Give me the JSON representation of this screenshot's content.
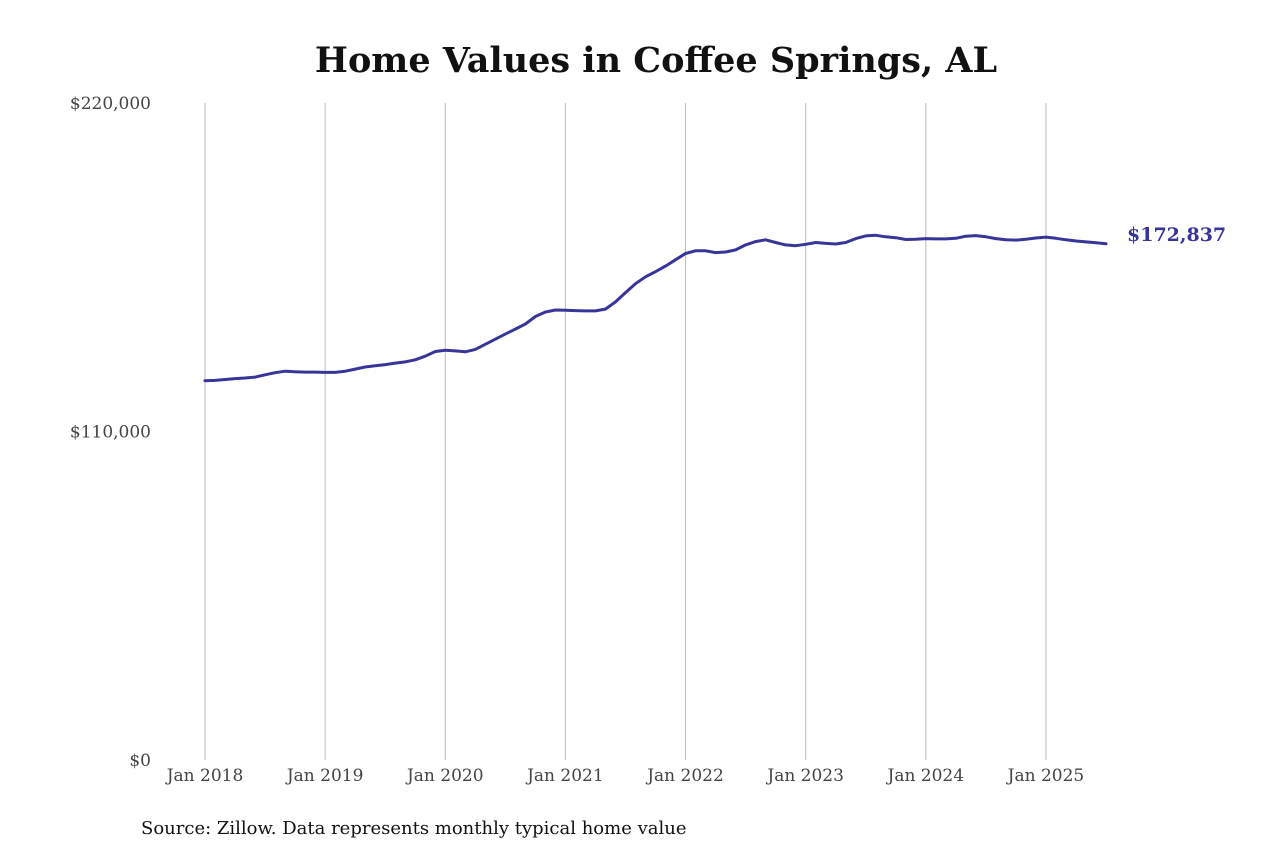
{
  "colors": {
    "line": "#38359a",
    "grid": "#bdbdbd",
    "text": "#444444"
  },
  "chart_data": {
    "type": "line",
    "title": "Home Values in Coffee Springs, AL",
    "xlabel": "",
    "ylabel": "",
    "ylim": [
      0,
      220000
    ],
    "yticks": [
      {
        "value": 0,
        "label": "$0"
      },
      {
        "value": 110000,
        "label": "$110,000"
      },
      {
        "value": 220000,
        "label": "$220,000"
      }
    ],
    "xlim": [
      "2018-01",
      "2025-07"
    ],
    "xticks": [
      {
        "value": "2018-01",
        "label": "Jan 2018"
      },
      {
        "value": "2019-01",
        "label": "Jan 2019"
      },
      {
        "value": "2020-01",
        "label": "Jan 2020"
      },
      {
        "value": "2021-01",
        "label": "Jan 2021"
      },
      {
        "value": "2022-01",
        "label": "Jan 2022"
      },
      {
        "value": "2023-01",
        "label": "Jan 2023"
      },
      {
        "value": "2024-01",
        "label": "Jan 2024"
      },
      {
        "value": "2025-01",
        "label": "Jan 2025"
      }
    ],
    "grid": "vertical",
    "end_label": "$172,837",
    "source": "Source: Zillow. Data represents monthly typical home value",
    "series": [
      {
        "points": [
          [
            "2018-01",
            127000
          ],
          [
            "2018-02",
            127100
          ],
          [
            "2018-03",
            127400
          ],
          [
            "2018-04",
            127700
          ],
          [
            "2018-05",
            127900
          ],
          [
            "2018-06",
            128200
          ],
          [
            "2018-07",
            129000
          ],
          [
            "2018-08",
            129700
          ],
          [
            "2018-09",
            130200
          ],
          [
            "2018-10",
            130000
          ],
          [
            "2018-11",
            129900
          ],
          [
            "2018-12",
            129900
          ],
          [
            "2019-01",
            129800
          ],
          [
            "2019-02",
            129800
          ],
          [
            "2019-03",
            130200
          ],
          [
            "2019-04",
            130900
          ],
          [
            "2019-05",
            131600
          ],
          [
            "2019-06",
            132000
          ],
          [
            "2019-07",
            132400
          ],
          [
            "2019-08",
            132900
          ],
          [
            "2019-09",
            133300
          ],
          [
            "2019-10",
            134000
          ],
          [
            "2019-11",
            135200
          ],
          [
            "2019-12",
            136800
          ],
          [
            "2020-01",
            137200
          ],
          [
            "2020-02",
            137000
          ],
          [
            "2020-03",
            136700
          ],
          [
            "2020-04",
            137500
          ],
          [
            "2020-05",
            139200
          ],
          [
            "2020-06",
            140900
          ],
          [
            "2020-07",
            142600
          ],
          [
            "2020-08",
            144300
          ],
          [
            "2020-09",
            146000
          ],
          [
            "2020-10",
            148500
          ],
          [
            "2020-11",
            150000
          ],
          [
            "2020-12",
            150700
          ],
          [
            "2021-01",
            150600
          ],
          [
            "2021-02",
            150500
          ],
          [
            "2021-03",
            150400
          ],
          [
            "2021-04",
            150400
          ],
          [
            "2021-05",
            151000
          ],
          [
            "2021-06",
            153400
          ],
          [
            "2021-07",
            156500
          ],
          [
            "2021-08",
            159500
          ],
          [
            "2021-09",
            161800
          ],
          [
            "2021-10",
            163500
          ],
          [
            "2021-11",
            165400
          ],
          [
            "2021-12",
            167500
          ],
          [
            "2022-01",
            169600
          ],
          [
            "2022-02",
            170500
          ],
          [
            "2022-03",
            170500
          ],
          [
            "2022-04",
            169900
          ],
          [
            "2022-05",
            170100
          ],
          [
            "2022-06",
            170800
          ],
          [
            "2022-07",
            172500
          ],
          [
            "2022-08",
            173600
          ],
          [
            "2022-09",
            174200
          ],
          [
            "2022-10",
            173300
          ],
          [
            "2022-11",
            172500
          ],
          [
            "2022-12",
            172200
          ],
          [
            "2023-01",
            172700
          ],
          [
            "2023-02",
            173300
          ],
          [
            "2023-03",
            173000
          ],
          [
            "2023-04",
            172800
          ],
          [
            "2023-05",
            173300
          ],
          [
            "2023-06",
            174600
          ],
          [
            "2023-07",
            175500
          ],
          [
            "2023-08",
            175700
          ],
          [
            "2023-09",
            175200
          ],
          [
            "2023-10",
            174900
          ],
          [
            "2023-11",
            174300
          ],
          [
            "2023-12",
            174400
          ],
          [
            "2024-01",
            174600
          ],
          [
            "2024-02",
            174500
          ],
          [
            "2024-03",
            174500
          ],
          [
            "2024-04",
            174700
          ],
          [
            "2024-05",
            175400
          ],
          [
            "2024-06",
            175600
          ],
          [
            "2024-07",
            175200
          ],
          [
            "2024-08",
            174600
          ],
          [
            "2024-09",
            174200
          ],
          [
            "2024-10",
            174100
          ],
          [
            "2024-11",
            174400
          ],
          [
            "2024-12",
            174800
          ],
          [
            "2025-01",
            175100
          ],
          [
            "2025-02",
            174700
          ],
          [
            "2025-03",
            174200
          ],
          [
            "2025-04",
            173800
          ],
          [
            "2025-05",
            173500
          ],
          [
            "2025-06",
            173200
          ],
          [
            "2025-07",
            172837
          ]
        ]
      }
    ]
  }
}
